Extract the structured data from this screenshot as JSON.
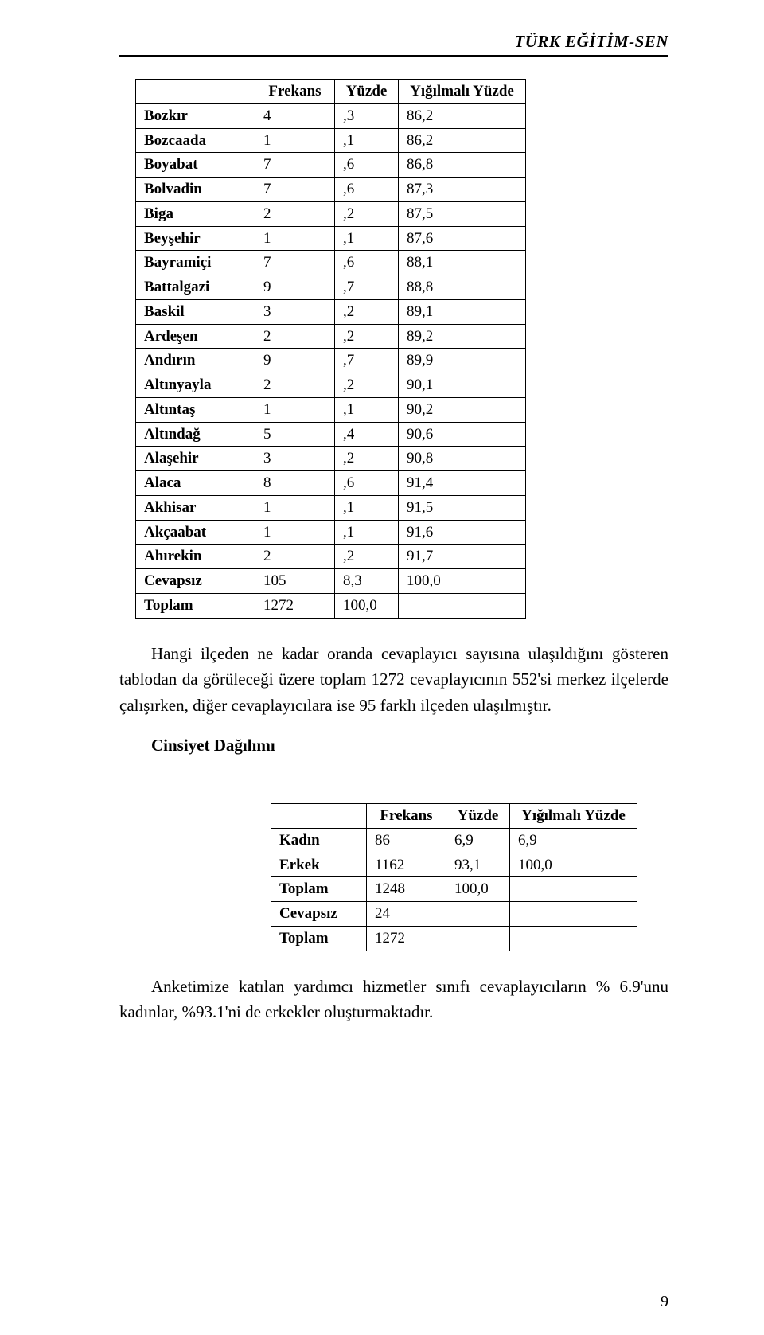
{
  "header": {
    "brand": "TÜRK EĞİTİM-SEN"
  },
  "table1": {
    "headers": {
      "col1": "Frekans",
      "col2": "Yüzde",
      "col3": "Yığılmalı Yüzde"
    },
    "rows": [
      {
        "label": "Bozkır",
        "f": "4",
        "y": ",3",
        "yy": "86,2"
      },
      {
        "label": "Bozcaada",
        "f": "1",
        "y": ",1",
        "yy": "86,2"
      },
      {
        "label": "Boyabat",
        "f": "7",
        "y": ",6",
        "yy": "86,8"
      },
      {
        "label": "Bolvadin",
        "f": "7",
        "y": ",6",
        "yy": "87,3"
      },
      {
        "label": "Biga",
        "f": "2",
        "y": ",2",
        "yy": "87,5"
      },
      {
        "label": "Beyşehir",
        "f": "1",
        "y": ",1",
        "yy": "87,6"
      },
      {
        "label": "Bayramiçi",
        "f": "7",
        "y": ",6",
        "yy": "88,1"
      },
      {
        "label": "Battalgazi",
        "f": "9",
        "y": ",7",
        "yy": "88,8"
      },
      {
        "label": "Baskil",
        "f": "3",
        "y": ",2",
        "yy": "89,1"
      },
      {
        "label": "Ardeşen",
        "f": "2",
        "y": ",2",
        "yy": "89,2"
      },
      {
        "label": "Andırın",
        "f": "9",
        "y": ",7",
        "yy": "89,9"
      },
      {
        "label": "Altınyayla",
        "f": "2",
        "y": ",2",
        "yy": "90,1"
      },
      {
        "label": "Altıntaş",
        "f": "1",
        "y": ",1",
        "yy": "90,2"
      },
      {
        "label": "Altındağ",
        "f": "5",
        "y": ",4",
        "yy": "90,6"
      },
      {
        "label": "Alaşehir",
        "f": "3",
        "y": ",2",
        "yy": "90,8"
      },
      {
        "label": "Alaca",
        "f": "8",
        "y": ",6",
        "yy": "91,4"
      },
      {
        "label": "Akhisar",
        "f": "1",
        "y": ",1",
        "yy": "91,5"
      },
      {
        "label": "Akçaabat",
        "f": "1",
        "y": ",1",
        "yy": "91,6"
      },
      {
        "label": "Ahırekin",
        "f": "2",
        "y": ",2",
        "yy": "91,7"
      },
      {
        "label": "Cevapsız",
        "f": "105",
        "y": "8,3",
        "yy": "100,0"
      },
      {
        "label": "Toplam",
        "f": "1272",
        "y": "100,0",
        "yy": ""
      }
    ]
  },
  "paragraph1": "Hangi ilçeden ne kadar oranda cevaplayıcı sayısına ulaşıldığını gösteren tablodan da görüleceği üzere toplam 1272 cevaplayıcının 552'si merkez ilçelerde çalışırken, diğer cevaplayıcılara ise 95 farklı ilçeden ulaşılmıştır.",
  "heading2": "Cinsiyet Dağılımı",
  "table2": {
    "headers": {
      "col1": "Frekans",
      "col2": "Yüzde",
      "col3": "Yığılmalı Yüzde"
    },
    "rows": [
      {
        "label": "Kadın",
        "f": "86",
        "y": "6,9",
        "yy": "6,9"
      },
      {
        "label": "Erkek",
        "f": "1162",
        "y": "93,1",
        "yy": "100,0"
      },
      {
        "label": "Toplam",
        "f": "1248",
        "y": "100,0",
        "yy": ""
      },
      {
        "label": "Cevapsız",
        "f": "24",
        "y": "",
        "yy": ""
      },
      {
        "label": "Toplam",
        "f": "1272",
        "y": "",
        "yy": ""
      }
    ]
  },
  "paragraph2": "Anketimize katılan yardımcı hizmetler sınıfı cevaplayıcıların % 6.9'unu kadınlar, %93.1'ni de erkekler oluşturmaktadır.",
  "pageNumber": "9"
}
